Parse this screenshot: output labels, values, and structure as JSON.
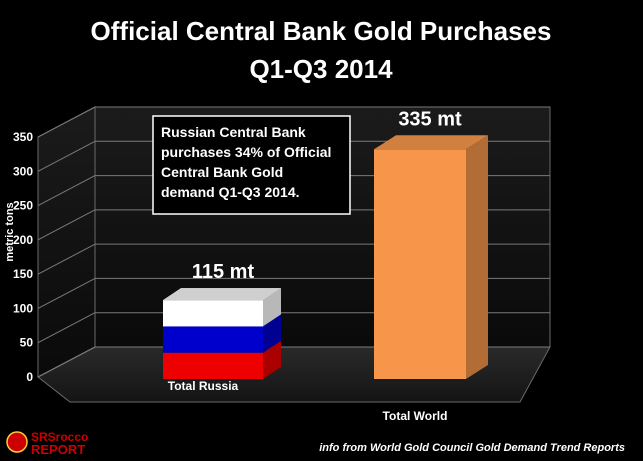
{
  "chart_data": {
    "type": "bar",
    "title": "Official Central Bank Gold Purchases",
    "subtitle": "Q1-Q3 2014",
    "ylabel": "metric tons",
    "ylim": [
      0,
      350
    ],
    "yticks": [
      "0",
      "50",
      "100",
      "150",
      "200",
      "250",
      "300",
      "350"
    ],
    "categories": [
      "Total Russia",
      "Total World"
    ],
    "values": [
      115,
      335
    ],
    "data_labels": [
      "115 mt",
      "335 mt"
    ],
    "grid": true,
    "annotation": [
      "Russian Central Bank",
      "purchases 34% of Official",
      "Central Bank Gold",
      "demand Q1-Q3 2014."
    ],
    "source_note": "info from World Gold Council Gold Demand Trend Reports",
    "colors": {
      "background": "#000000",
      "grid": "#7a7a7a",
      "world_bar": "#f7964a",
      "russia_white": "#ffffff",
      "russia_blue": "#0000cc",
      "russia_red": "#ee0000"
    }
  },
  "logo": {
    "text_top": "SRSrocco",
    "text_bottom": "REPORT"
  }
}
